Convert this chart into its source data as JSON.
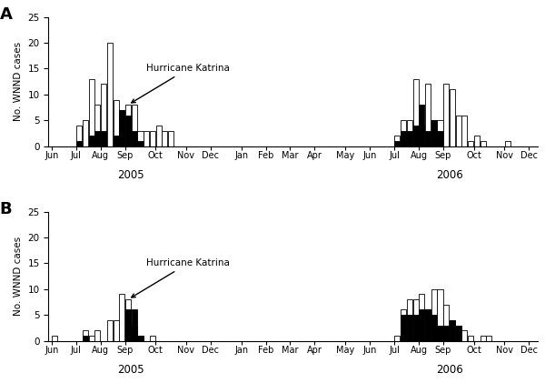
{
  "panel_A": {
    "title": "A",
    "ylabel": "No. WNND cases",
    "ylim": [
      0,
      25
    ],
    "yticks": [
      0,
      5,
      10,
      15,
      20,
      25
    ],
    "annotation": "Hurricane Katrina",
    "katrina_week": 36,
    "weeks_2005": {
      "week": [
        23,
        27,
        28,
        29,
        30,
        31,
        32,
        33,
        34,
        35,
        36,
        37,
        38,
        39,
        40,
        41,
        42,
        43,
        44,
        45,
        46,
        47,
        48
      ],
      "white": [
        0,
        4,
        5,
        13,
        8,
        12,
        20,
        9,
        7,
        8,
        8,
        3,
        3,
        3,
        4,
        3,
        3,
        0,
        0,
        0,
        0,
        0,
        0
      ],
      "black": [
        0,
        1,
        0,
        2,
        3,
        3,
        0,
        2,
        7,
        6,
        3,
        1,
        0,
        0,
        0,
        0,
        0,
        0,
        0,
        0,
        0,
        0,
        0
      ]
    },
    "weeks_2006": {
      "week": [
        23,
        27,
        28,
        29,
        30,
        31,
        32,
        33,
        34,
        35,
        36,
        37,
        38,
        39,
        40,
        41,
        42,
        43,
        44,
        45,
        46,
        47,
        48
      ],
      "white": [
        0,
        2,
        5,
        5,
        13,
        4,
        12,
        5,
        5,
        12,
        11,
        6,
        6,
        1,
        2,
        1,
        0,
        0,
        0,
        1,
        0,
        0,
        0
      ],
      "black": [
        0,
        1,
        3,
        3,
        4,
        8,
        3,
        5,
        3,
        0,
        0,
        0,
        0,
        0,
        0,
        0,
        0,
        0,
        0,
        0,
        0,
        0,
        0
      ]
    }
  },
  "panel_B": {
    "title": "B",
    "ylabel": "No. WNND cases",
    "ylim": [
      0,
      25
    ],
    "yticks": [
      0,
      5,
      10,
      15,
      20,
      25
    ],
    "annotation": "Hurricane Katrina",
    "katrina_week": 36,
    "weeks_2005": {
      "week": [
        23,
        27,
        28,
        29,
        30,
        31,
        32,
        33,
        34,
        35,
        36,
        37,
        38,
        39,
        40,
        41,
        42,
        43,
        44,
        45,
        46,
        47,
        48
      ],
      "white": [
        1,
        0,
        2,
        1,
        2,
        0,
        4,
        4,
        9,
        8,
        3,
        1,
        0,
        1,
        0,
        0,
        0,
        0,
        0,
        0,
        0,
        0,
        0
      ],
      "black": [
        0,
        0,
        1,
        0,
        0,
        0,
        0,
        0,
        0,
        6,
        6,
        1,
        0,
        0,
        0,
        0,
        0,
        0,
        0,
        0,
        0,
        0,
        0
      ]
    },
    "weeks_2006": {
      "week": [
        23,
        27,
        28,
        29,
        30,
        31,
        32,
        33,
        34,
        35,
        36,
        37,
        38,
        39,
        40,
        41,
        42,
        43,
        44,
        45,
        46,
        47,
        48
      ],
      "white": [
        0,
        1,
        6,
        8,
        8,
        9,
        6,
        10,
        10,
        7,
        4,
        3,
        2,
        1,
        0,
        1,
        1,
        0,
        0,
        0,
        0,
        0,
        0
      ],
      "black": [
        0,
        0,
        5,
        5,
        5,
        6,
        6,
        5,
        3,
        3,
        4,
        3,
        0,
        0,
        0,
        0,
        0,
        0,
        0,
        0,
        0,
        0,
        0
      ]
    }
  },
  "month_ticks": {
    "2005": {
      "labels": [
        "Jun",
        "Jul",
        "Aug",
        "Sep",
        "Oct",
        "Nov",
        "Dec",
        "Jan",
        "Feb",
        "Mar",
        "Apr",
        "May",
        "Jun"
      ],
      "weeks": [
        22.5,
        26.5,
        30.5,
        34.5,
        38.5,
        43.5,
        47.5,
        52.5,
        56.5,
        60.5,
        64.5,
        69.5,
        73.5
      ]
    }
  },
  "background_color": "#ffffff",
  "bar_white": "#ffffff",
  "bar_black": "#000000",
  "bar_edge": "#000000"
}
